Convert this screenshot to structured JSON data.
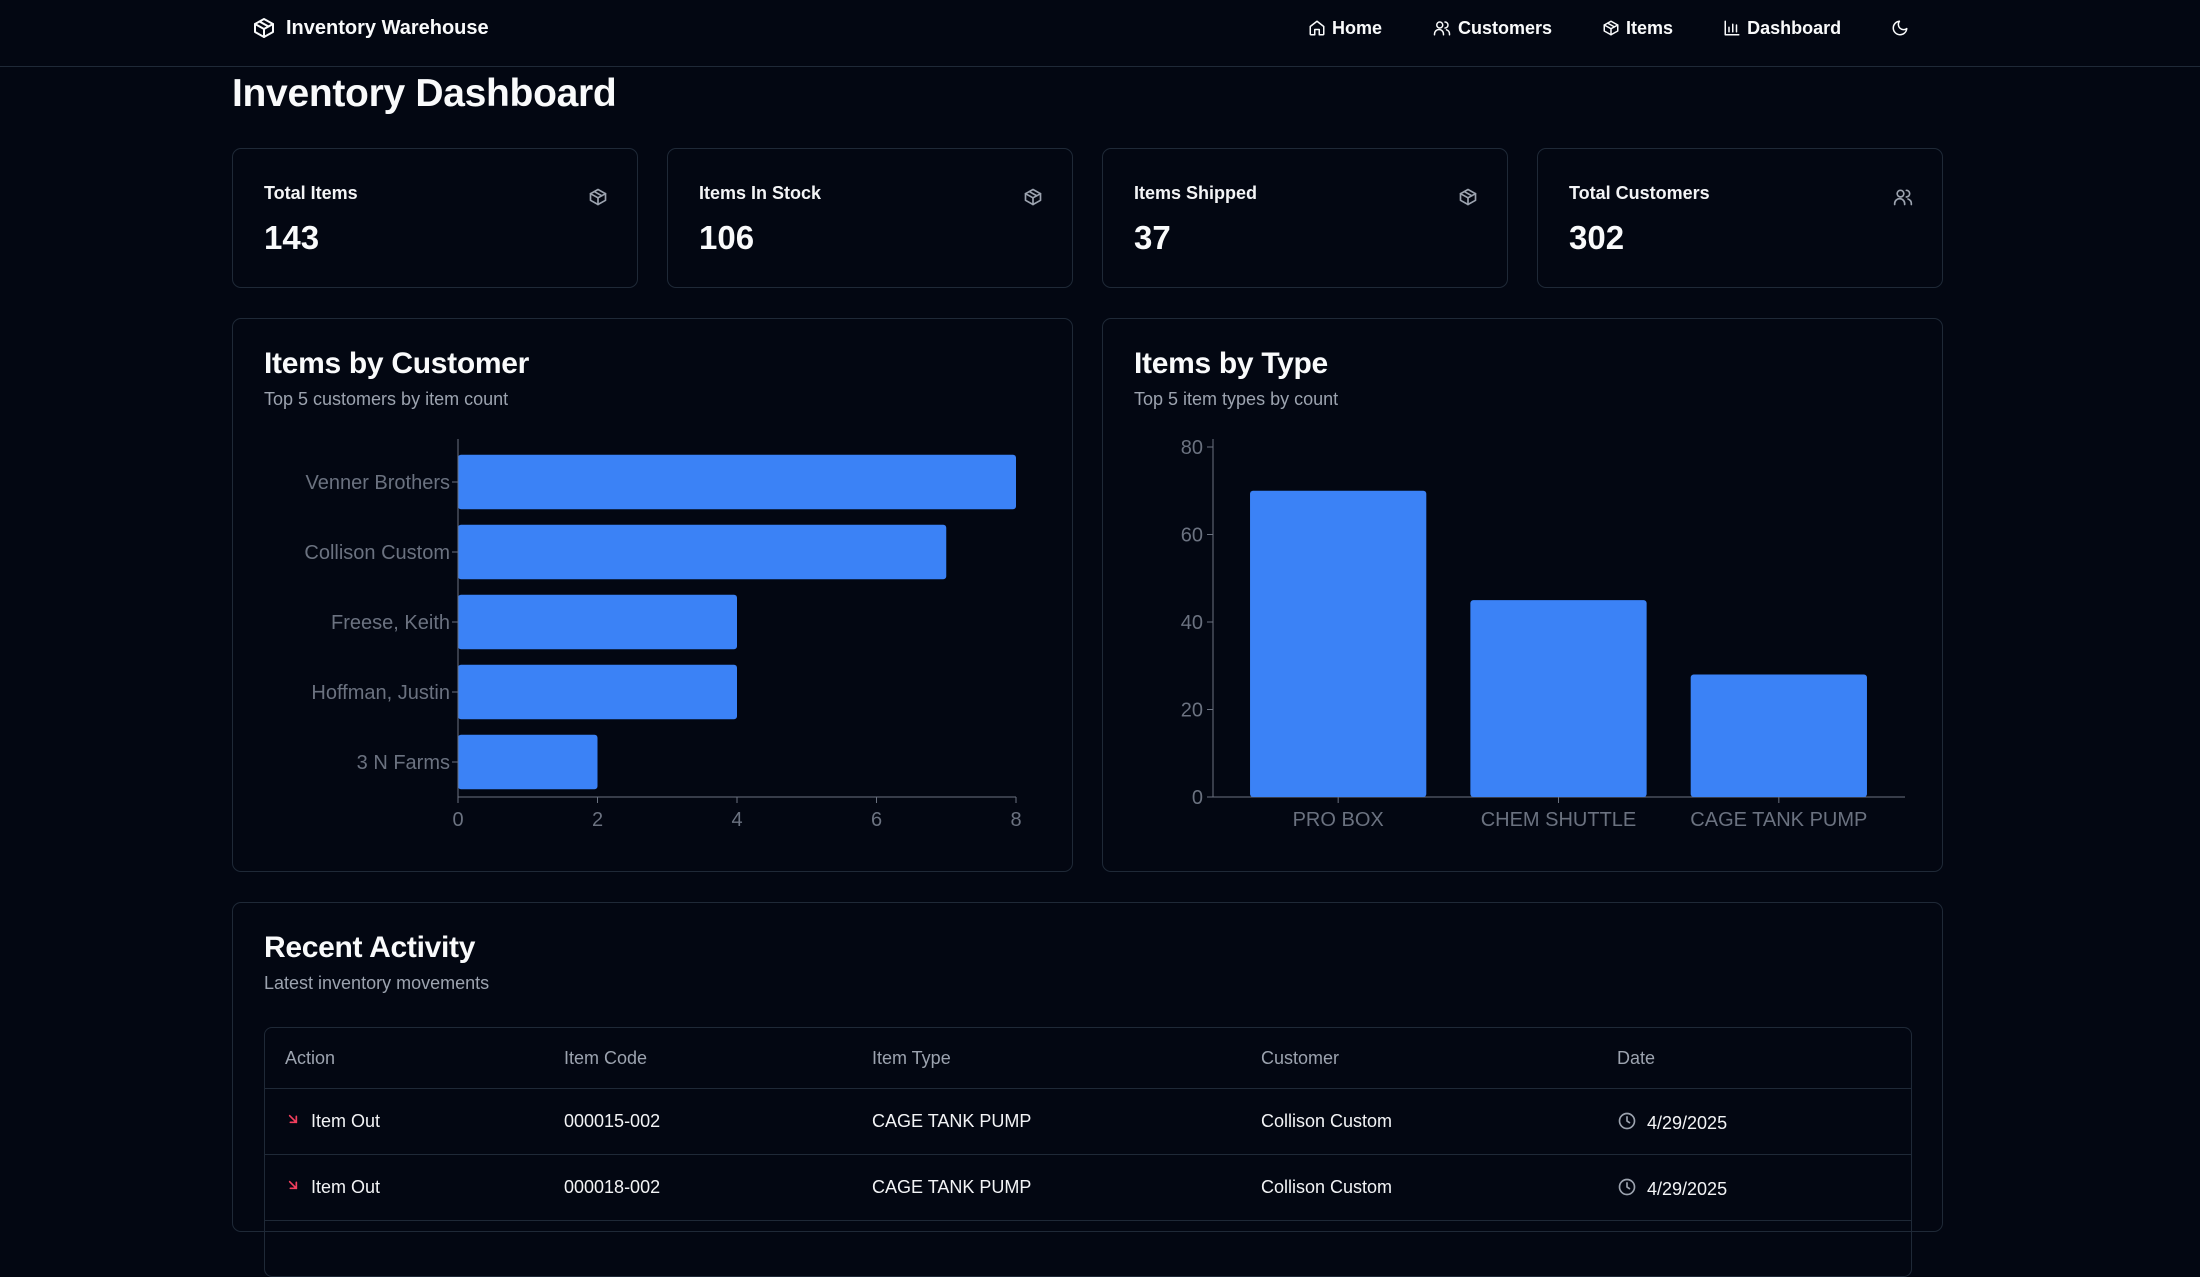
{
  "app": {
    "brand": "Inventory Warehouse",
    "brand_icon": "package-icon"
  },
  "nav": [
    {
      "label": "Home",
      "icon": "home-icon"
    },
    {
      "label": "Customers",
      "icon": "users-icon"
    },
    {
      "label": "Items",
      "icon": "package-icon"
    },
    {
      "label": "Dashboard",
      "icon": "bar-chart-icon"
    }
  ],
  "theme_toggle_icon": "moon-icon",
  "page": {
    "title": "Inventory Dashboard"
  },
  "stats": [
    {
      "label": "Total Items",
      "value": "143",
      "icon": "package-icon"
    },
    {
      "label": "Items In Stock",
      "value": "106",
      "icon": "package-icon"
    },
    {
      "label": "Items Shipped",
      "value": "37",
      "icon": "package-icon"
    },
    {
      "label": "Total Customers",
      "value": "302",
      "icon": "users-icon"
    }
  ],
  "charts": {
    "customers": {
      "title": "Items by Customer",
      "subtitle": "Top 5 customers by item count"
    },
    "types": {
      "title": "Items by Type",
      "subtitle": "Top 5 item types by count"
    }
  },
  "chart_data": [
    {
      "type": "bar",
      "orientation": "horizontal",
      "title": "Items by Customer",
      "categories": [
        "Venner Brothers",
        "Collison Custom",
        "Freese, Keith",
        "Hoffman, Justin",
        "3 N Farms"
      ],
      "values": [
        8,
        7,
        4,
        4,
        2
      ],
      "xlim": [
        0,
        8
      ],
      "xticks": [
        0,
        2,
        4,
        6,
        8
      ],
      "color": "#3b82f6"
    },
    {
      "type": "bar",
      "orientation": "vertical",
      "title": "Items by Type",
      "categories": [
        "PRO BOX",
        "CHEM SHUTTLE",
        "CAGE TANK PUMP"
      ],
      "values": [
        70,
        45,
        28
      ],
      "ylim": [
        0,
        80
      ],
      "yticks": [
        0,
        20,
        40,
        60,
        80
      ],
      "color": "#3b82f6"
    }
  ],
  "activity": {
    "title": "Recent Activity",
    "subtitle": "Latest inventory movements",
    "columns": [
      "Action",
      "Item Code",
      "Item Type",
      "Customer",
      "Date"
    ],
    "rows": [
      {
        "action": "Item Out",
        "code": "000015-002",
        "type": "CAGE TANK PUMP",
        "customer": "Collison Custom",
        "date": "4/29/2025"
      },
      {
        "action": "Item Out",
        "code": "000018-002",
        "type": "CAGE TANK PUMP",
        "customer": "Collison Custom",
        "date": "4/29/2025"
      }
    ]
  },
  "colors": {
    "background": "#030712",
    "border": "#1f2937",
    "bar": "#3b82f6",
    "item_out_arrow": "#f43f5e"
  }
}
